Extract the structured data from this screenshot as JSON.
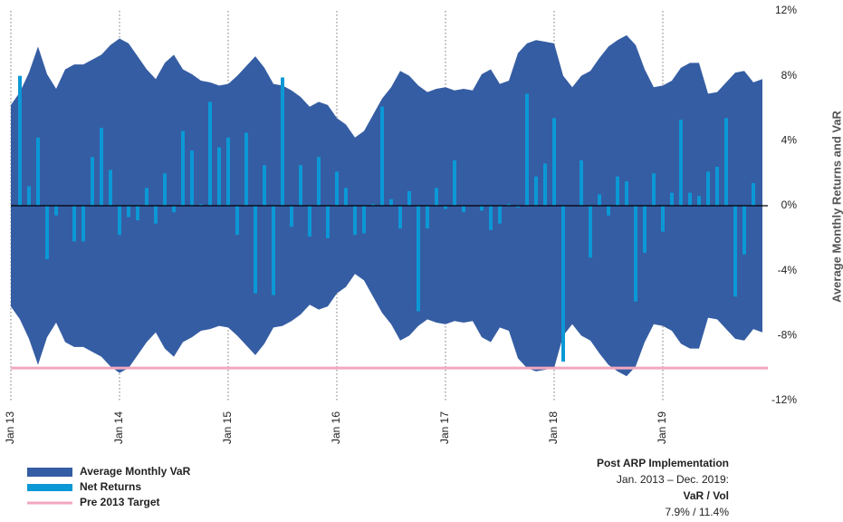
{
  "chart_data": {
    "type": "band-bar",
    "y_label": "Average Monthly Returns and VaR",
    "categories": [
      "Jan 13",
      null,
      null,
      null,
      null,
      null,
      null,
      null,
      null,
      null,
      null,
      null,
      "Jan 14",
      null,
      null,
      null,
      null,
      null,
      null,
      null,
      null,
      null,
      null,
      null,
      "Jan 15",
      null,
      null,
      null,
      null,
      null,
      null,
      null,
      null,
      null,
      null,
      null,
      "Jan 16",
      null,
      null,
      null,
      null,
      null,
      null,
      null,
      null,
      null,
      null,
      null,
      "Jan 17",
      null,
      null,
      null,
      null,
      null,
      null,
      null,
      null,
      null,
      null,
      null,
      "Jan 18",
      null,
      null,
      null,
      null,
      null,
      null,
      null,
      null,
      null,
      null,
      null,
      "Jan 19",
      null,
      null,
      null,
      null,
      null,
      null,
      null,
      null,
      null,
      null,
      null
    ],
    "series": [
      {
        "name": "Average Monthly VaR",
        "color": "#355da3",
        "kind": "band",
        "values": [
          6.2,
          7.0,
          8.2,
          9.8,
          8.1,
          7.2,
          8.4,
          8.7,
          8.7,
          9.0,
          9.3,
          9.9,
          10.3,
          10.0,
          9.2,
          8.4,
          7.8,
          8.8,
          9.3,
          8.4,
          8.1,
          7.7,
          7.6,
          7.4,
          7.5,
          8.0,
          8.6,
          9.2,
          8.5,
          7.5,
          7.4,
          7.1,
          6.7,
          6.1,
          6.4,
          6.2,
          5.4,
          5.0,
          4.2,
          4.6,
          5.6,
          6.6,
          7.3,
          8.3,
          8.0,
          7.4,
          7.0,
          7.2,
          7.3,
          7.1,
          7.2,
          7.1,
          8.1,
          8.4,
          7.5,
          7.7,
          9.4,
          10.0,
          10.2,
          10.1,
          10.0,
          8.0,
          7.3,
          8.0,
          8.3,
          9.1,
          9.8,
          10.2,
          10.5,
          9.9,
          8.4,
          7.3,
          7.4,
          7.7,
          8.5,
          8.8,
          8.8,
          6.9,
          7.0,
          7.6,
          8.2,
          8.3,
          7.6,
          7.8
        ]
      },
      {
        "name": "Net Returns",
        "color": "#0b98d6",
        "kind": "bar",
        "values": [
          0,
          8.0,
          1.2,
          4.2,
          -3.3,
          -0.6,
          0,
          -2.2,
          -2.2,
          3.0,
          4.8,
          2.2,
          -1.8,
          -0.7,
          -0.9,
          1.1,
          -1.1,
          2.0,
          -0.4,
          4.6,
          3.4,
          0.1,
          6.4,
          3.6,
          4.2,
          -1.8,
          4.5,
          -5.4,
          2.5,
          -5.5,
          7.9,
          -1.3,
          2.5,
          -1.9,
          3.0,
          -2.0,
          2.1,
          1.1,
          -1.8,
          -1.7,
          0.1,
          6.1,
          0.4,
          -1.4,
          0.9,
          -6.5,
          -1.4,
          1.1,
          -0.2,
          2.8,
          -0.4,
          0,
          -0.3,
          -1.5,
          -1.1,
          0.1,
          -0.1,
          6.9,
          1.8,
          2.6,
          5.4,
          -9.6,
          0,
          2.8,
          -3.2,
          0.7,
          -0.6,
          1.8,
          1.5,
          -5.9,
          -2.9,
          2.0,
          -1.6,
          0.8,
          5.3,
          0.8,
          0.6,
          2.1,
          2.4,
          5.4,
          -5.6,
          -3.0,
          1.4,
          0
        ]
      },
      {
        "name": "Pre 2013 Target",
        "color": "#f2a7be",
        "kind": "hline",
        "value": -10
      }
    ],
    "ylim": [
      -12,
      12
    ],
    "yticks": [
      {
        "value": 12,
        "label": "12%"
      },
      {
        "value": 8,
        "label": "8%"
      },
      {
        "value": 4,
        "label": "4%"
      },
      {
        "value": 0,
        "label": "0%"
      },
      {
        "value": -4,
        "label": "-4%"
      },
      {
        "value": -8,
        "label": "-8%"
      },
      {
        "value": -12,
        "label": "-12%"
      }
    ],
    "annotations": [
      "Post ARP Implementation",
      "Jan. 2013 –  Dec. 2019:",
      "VaR  /  Vol",
      "7.9%  /  11.4%"
    ]
  }
}
